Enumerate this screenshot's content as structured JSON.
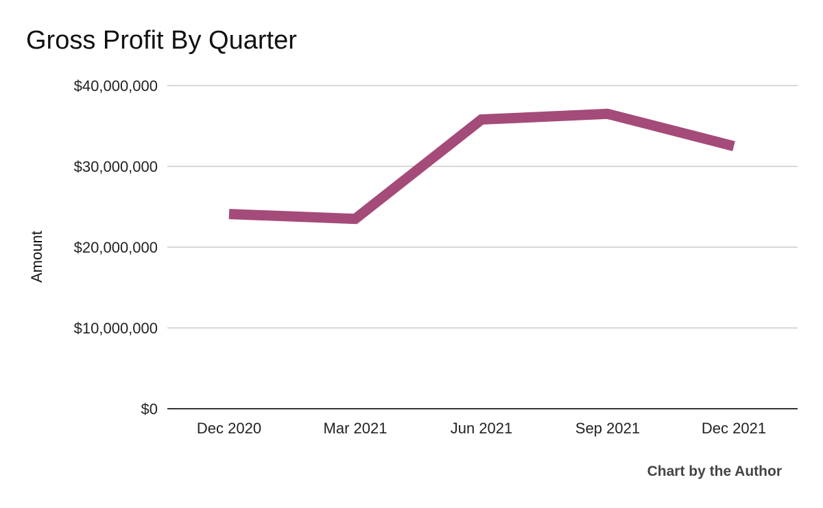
{
  "chart_data": {
    "type": "line",
    "title": "Gross Profit By Quarter",
    "xlabel": "",
    "ylabel": "Amount",
    "categories": [
      "Dec 2020",
      "Mar 2021",
      "Jun 2021",
      "Sep 2021",
      "Dec 2021"
    ],
    "series": [
      {
        "name": "Gross Profit",
        "values": [
          24100000,
          23500000,
          35800000,
          36500000,
          32500000
        ],
        "color": "#a44b79"
      }
    ],
    "ylim": [
      0,
      40000000
    ],
    "yticks": [
      0,
      10000000,
      20000000,
      30000000,
      40000000
    ],
    "ytick_labels": [
      "$0",
      "$10,000,000",
      "$20,000,000",
      "$30,000,000",
      "$40,000,000"
    ],
    "grid": true,
    "legend": "none"
  },
  "footer": {
    "credit": "Chart by the Author"
  },
  "colors": {
    "line": "#a44b79",
    "grid": "#cccccc",
    "axis": "#333333"
  }
}
